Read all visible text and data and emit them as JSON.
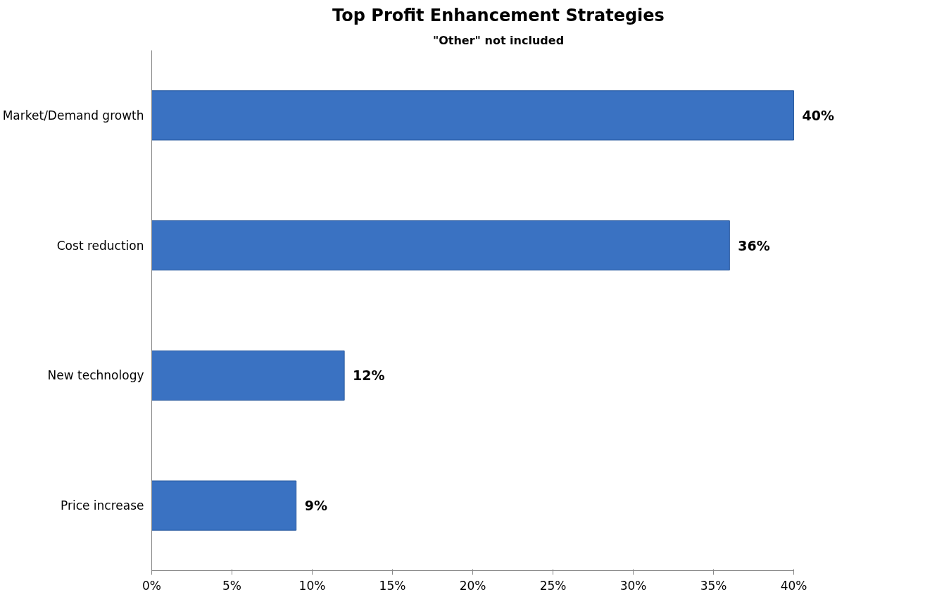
{
  "chart_data": {
    "type": "bar",
    "orientation": "horizontal",
    "title": "Top Profit Enhancement Strategies",
    "subtitle": "\"Other\" not included",
    "categories": [
      "Market/Demand growth",
      "Cost reduction",
      "New technology",
      "Price increase"
    ],
    "values": [
      40,
      36,
      12,
      9
    ],
    "color": "#3a72c2",
    "value_labels": [
      "40%",
      "36%",
      "12%",
      "9%"
    ],
    "xlim": [
      0,
      40
    ],
    "xticks": [
      {
        "value": 0,
        "label": "0%"
      },
      {
        "value": 5,
        "label": "5%"
      },
      {
        "value": 10,
        "label": "10%"
      },
      {
        "value": 15,
        "label": "15%"
      },
      {
        "value": 20,
        "label": "20%"
      },
      {
        "value": 25,
        "label": "25%"
      },
      {
        "value": 30,
        "label": "30%"
      },
      {
        "value": 35,
        "label": "35%"
      },
      {
        "value": 40,
        "label": "40%"
      }
    ],
    "grid": false
  }
}
